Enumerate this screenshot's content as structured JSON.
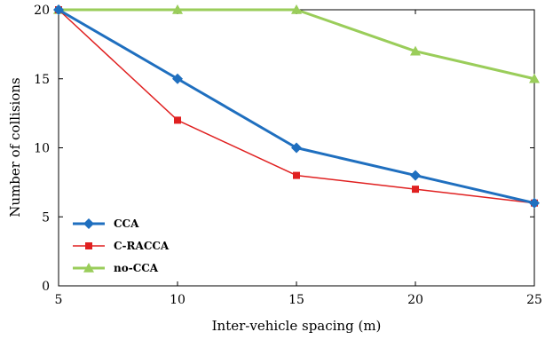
{
  "chart_data": {
    "type": "line",
    "title": "",
    "xlabel": "Inter-vehicle spacing (m)",
    "ylabel": "Number of collisions",
    "x": [
      5,
      10,
      15,
      20,
      25
    ],
    "xlim": [
      5,
      25
    ],
    "ylim": [
      0,
      20
    ],
    "xticks": [
      "5",
      "10",
      "15",
      "20",
      "25"
    ],
    "yticks": [
      "0",
      "5",
      "10",
      "15",
      "20"
    ],
    "grid": false,
    "legend_position": "bottom-left",
    "series": [
      {
        "name": "CCA",
        "values": [
          20,
          15,
          10,
          8,
          6
        ],
        "color": "#1f6fbf",
        "marker": "diamond"
      },
      {
        "name": "C-RACCA",
        "values": [
          20,
          12,
          8,
          7,
          6
        ],
        "color": "#e02020",
        "marker": "square"
      },
      {
        "name": "no-CCA",
        "values": [
          20,
          20,
          20,
          17,
          15
        ],
        "color": "#9acd5a",
        "marker": "triangle"
      }
    ]
  }
}
